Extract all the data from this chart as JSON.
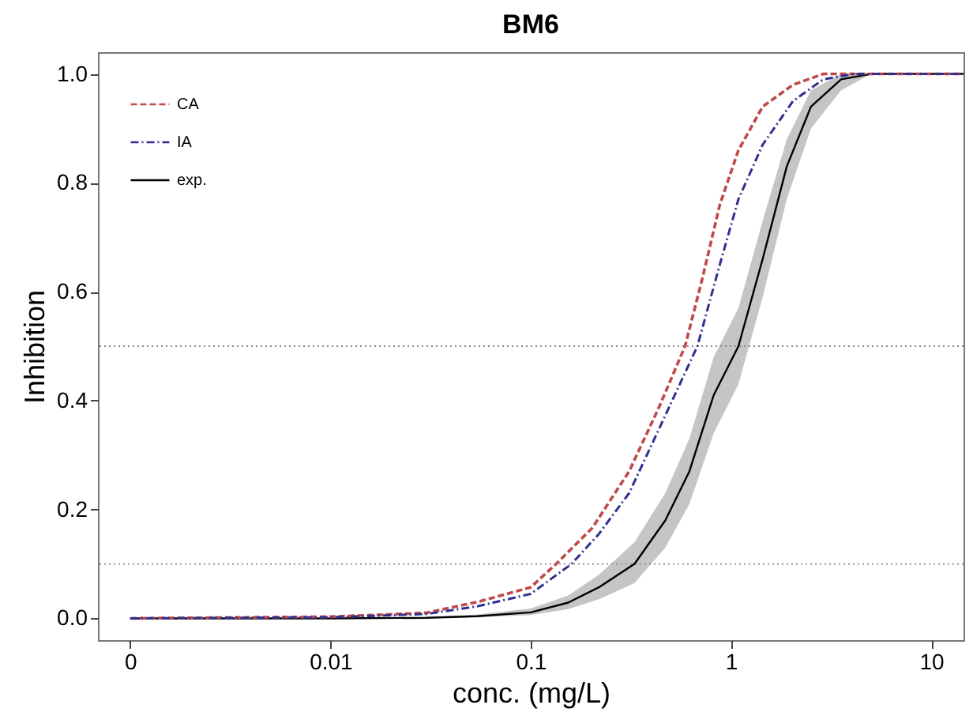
{
  "chart_data": {
    "type": "line",
    "title": "BM6",
    "xlabel": "conc. (mg/L)",
    "ylabel": "Inhibition",
    "log": "x",
    "xlim": [
      0.00069,
      14.5
    ],
    "xticks": [
      {
        "value": 0.001,
        "label": "0"
      },
      0.01,
      0.1,
      1,
      10
    ],
    "ylim": [
      -0.04,
      1.04
    ],
    "yticks": [
      {
        "value": 0,
        "label": "0.0"
      },
      {
        "value": 0.2,
        "label": "0.2"
      },
      {
        "value": 0.4,
        "label": "0.4"
      },
      {
        "value": 0.6,
        "label": "0.6"
      },
      {
        "value": 0.8,
        "label": "0.8"
      },
      {
        "value": 1,
        "label": "1.0"
      }
    ],
    "grid": false,
    "legend": "top left",
    "ref_lines": [
      {
        "axis": "y",
        "value": 0.5,
        "color": "#888888",
        "line_style": "dotted"
      },
      {
        "axis": "y",
        "value": 0.1,
        "color": "#888888",
        "line_style": "dotted"
      }
    ],
    "series": [
      {
        "name": "CA",
        "color": "#c04848",
        "line_style": "dashed",
        "x": [
          0.001,
          0.01,
          0.03,
          0.054,
          0.1,
          0.134,
          0.203,
          0.31,
          0.44,
          0.59,
          0.715,
          0.88,
          1.09,
          1.44,
          2.04,
          2.89,
          14.5
        ],
        "values": [
          0,
          0.003,
          0.01,
          0.03,
          0.057,
          0.1,
          0.166,
          0.27,
          0.39,
          0.5,
          0.62,
          0.76,
          0.86,
          0.94,
          0.98,
          1.0,
          1.0
        ]
      },
      {
        "name": "IA",
        "color": "#303090",
        "line_style": "dashdot",
        "x": [
          0.001,
          0.01,
          0.03,
          0.054,
          0.1,
          0.16,
          0.219,
          0.31,
          0.44,
          0.68,
          0.88,
          1.09,
          1.44,
          2.04,
          2.89,
          4.1,
          14.5
        ],
        "values": [
          0,
          0.002,
          0.008,
          0.022,
          0.045,
          0.1,
          0.155,
          0.23,
          0.35,
          0.5,
          0.65,
          0.77,
          0.87,
          0.95,
          0.99,
          1.0,
          1.0
        ]
      },
      {
        "name": "exp.",
        "color": "#000000",
        "line_style": "solid",
        "x": [
          0.001,
          0.01,
          0.03,
          0.054,
          0.1,
          0.154,
          0.219,
          0.33,
          0.47,
          0.62,
          0.82,
          1.09,
          1.44,
          1.9,
          2.51,
          3.55,
          5.0,
          14.5
        ],
        "values": [
          0,
          0,
          0.001,
          0.004,
          0.011,
          0.029,
          0.057,
          0.1,
          0.18,
          0.27,
          0.41,
          0.5,
          0.66,
          0.83,
          0.94,
          0.99,
          1.0,
          1.0
        ],
        "lower": [
          0,
          0,
          0,
          0.002,
          0.006,
          0.017,
          0.035,
          0.065,
          0.13,
          0.21,
          0.34,
          0.43,
          0.59,
          0.77,
          0.9,
          0.97,
          1.0,
          1.0
        ],
        "upper": [
          0,
          0,
          0.002,
          0.007,
          0.018,
          0.042,
          0.08,
          0.14,
          0.23,
          0.33,
          0.48,
          0.57,
          0.73,
          0.88,
          0.97,
          1.0,
          1.0,
          1.0
        ]
      }
    ]
  }
}
